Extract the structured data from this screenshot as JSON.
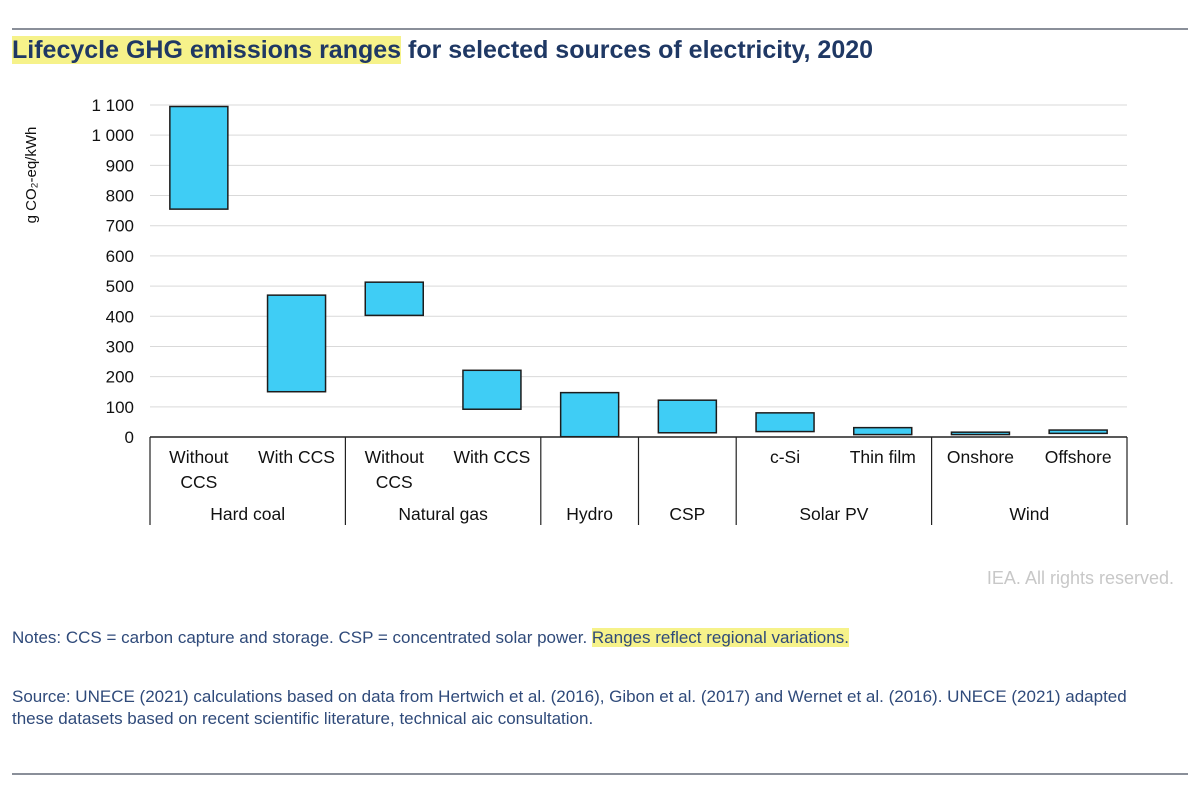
{
  "title": {
    "highlight": "Lifecycle GHG emissions ranges",
    "rest": " for selected sources of electricity, 2020"
  },
  "colors": {
    "bar_fill": "#3fcdf5",
    "bar_stroke": "#1c1c1c",
    "highlight": "#f6f28a",
    "title": "#1f3864",
    "notes": "#2f4a7a"
  },
  "chart_data": {
    "type": "floating-bar",
    "ylabel": "g CO₂-eq/kWh",
    "ylim": [
      0,
      1100
    ],
    "yticks": [
      0,
      100,
      200,
      300,
      400,
      500,
      600,
      700,
      800,
      900,
      1000,
      1100
    ],
    "ytick_labels": [
      "0",
      "100",
      "200",
      "300",
      "400",
      "500",
      "600",
      "700",
      "800",
      "900",
      "1 000",
      "1 100"
    ],
    "grid": true,
    "groups": [
      {
        "name": "Hard coal",
        "categories": [
          "Without CCS",
          "With CCS"
        ]
      },
      {
        "name": "Natural gas",
        "categories": [
          "Without CCS",
          "With CCS"
        ]
      },
      {
        "name": "Hydro",
        "categories": [
          ""
        ]
      },
      {
        "name": "CSP",
        "categories": [
          ""
        ]
      },
      {
        "name": "Solar PV",
        "categories": [
          "c-Si",
          "Thin film"
        ]
      },
      {
        "name": "Wind",
        "categories": [
          "Onshore",
          "Offshore"
        ]
      }
    ],
    "ranges": [
      {
        "group": "Hard coal",
        "category": "Without CCS",
        "low": 755,
        "high": 1095
      },
      {
        "group": "Hard coal",
        "category": "With CCS",
        "low": 150,
        "high": 470
      },
      {
        "group": "Natural gas",
        "category": "Without CCS",
        "low": 403,
        "high": 513
      },
      {
        "group": "Natural gas",
        "category": "With CCS",
        "low": 92,
        "high": 221
      },
      {
        "group": "Hydro",
        "category": "",
        "low": 1,
        "high": 147
      },
      {
        "group": "CSP",
        "category": "",
        "low": 14,
        "high": 122
      },
      {
        "group": "Solar PV",
        "category": "c-Si",
        "low": 18,
        "high": 80
      },
      {
        "group": "Solar PV",
        "category": "Thin film",
        "low": 8,
        "high": 31
      },
      {
        "group": "Wind",
        "category": "Onshore",
        "low": 8,
        "high": 16
      },
      {
        "group": "Wind",
        "category": "Offshore",
        "low": 12,
        "high": 23
      }
    ]
  },
  "copyright": "IEA. All rights reserved.",
  "notes": {
    "text": "Notes: CCS = carbon capture and storage. CSP = concentrated solar power. ",
    "highlight": "Ranges reflect regional variations."
  },
  "source": "Source: UNECE (2021) calculations based on data from Hertwich et al. (2016), Gibon et al. (2017) and Wernet et al. (2016). UNECE (2021) adapted these datasets based on recent scientific literature, technical aic consultation."
}
